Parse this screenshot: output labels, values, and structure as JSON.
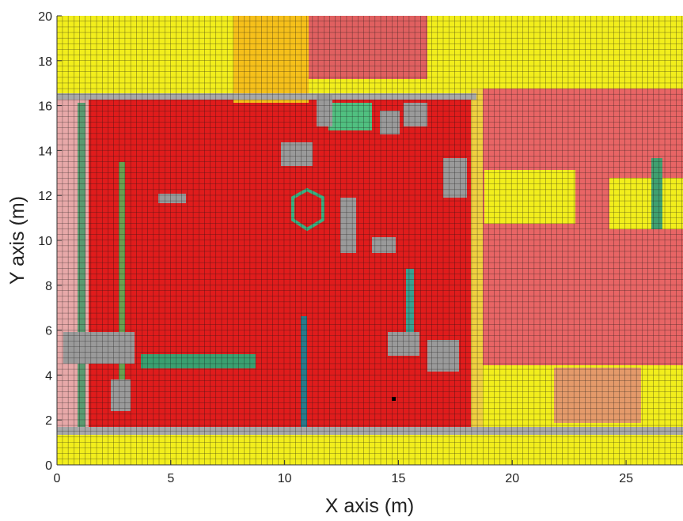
{
  "chart_data": {
    "type": "map",
    "xlabel": "X axis (m)",
    "ylabel": "Y axis (m)",
    "xlim": [
      0,
      27.5
    ],
    "ylim": [
      0,
      20
    ],
    "xticks": [
      0,
      5,
      10,
      15,
      20,
      25
    ],
    "yticks": [
      0,
      2,
      4,
      6,
      8,
      10,
      12,
      14,
      16,
      18,
      20
    ]
  }
}
